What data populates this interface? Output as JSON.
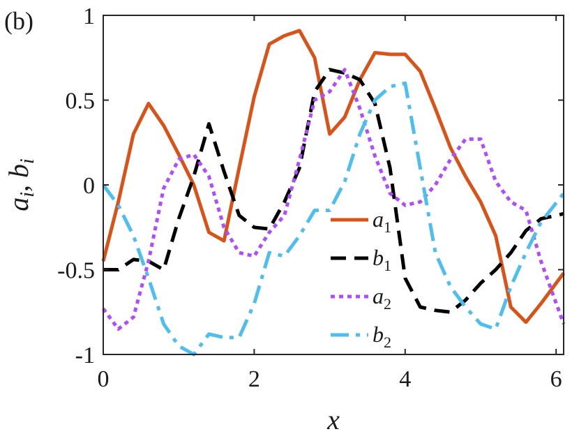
{
  "panel_label": "(b)",
  "chart_data": {
    "type": "line",
    "xlabel": "x",
    "ylabel": "a_i, b_i",
    "xlim": [
      0,
      6.1
    ],
    "ylim": [
      -1,
      1
    ],
    "xticks": [
      0,
      2,
      4,
      6
    ],
    "xtick_labels": [
      "0",
      "2",
      "4",
      "6"
    ],
    "yticks": [
      1,
      0.5,
      0,
      -0.5,
      -1
    ],
    "ytick_labels": [
      "1",
      "0.5",
      "0",
      "-0.5",
      "-1"
    ],
    "grid": false,
    "legend_position": "center-right",
    "series": [
      {
        "name": "a_1",
        "symbol": "a",
        "subscript": "1",
        "color": "#D95319",
        "dash": "solid",
        "x": [
          0,
          0.2,
          0.4,
          0.6,
          0.8,
          1.0,
          1.2,
          1.4,
          1.6,
          1.8,
          2.0,
          2.2,
          2.4,
          2.6,
          2.8,
          3.0,
          3.2,
          3.4,
          3.6,
          3.8,
          4.0,
          4.2,
          4.4,
          4.6,
          4.8,
          5.0,
          5.2,
          5.4,
          5.6,
          5.8,
          6.1
        ],
        "y": [
          -0.45,
          -0.1,
          0.3,
          0.48,
          0.35,
          0.18,
          0.0,
          -0.28,
          -0.33,
          0.1,
          0.52,
          0.83,
          0.88,
          0.91,
          0.75,
          0.3,
          0.4,
          0.62,
          0.78,
          0.77,
          0.77,
          0.67,
          0.45,
          0.22,
          0.05,
          -0.1,
          -0.3,
          -0.72,
          -0.81,
          -0.7,
          -0.52
        ]
      },
      {
        "name": "b_1",
        "symbol": "b",
        "subscript": "1",
        "color": "#000000",
        "dash": "long-dash",
        "x": [
          0,
          0.2,
          0.4,
          0.6,
          0.8,
          1.0,
          1.2,
          1.4,
          1.6,
          1.8,
          2.0,
          2.2,
          2.4,
          2.6,
          2.8,
          3.0,
          3.2,
          3.4,
          3.6,
          3.8,
          4.0,
          4.2,
          4.4,
          4.6,
          4.8,
          5.0,
          5.2,
          5.4,
          5.6,
          5.8,
          6.1
        ],
        "y": [
          -0.5,
          -0.5,
          -0.44,
          -0.45,
          -0.5,
          -0.2,
          0.05,
          0.36,
          0.08,
          -0.18,
          -0.25,
          -0.26,
          -0.1,
          0.1,
          0.55,
          0.68,
          0.66,
          0.62,
          0.48,
          0.1,
          -0.55,
          -0.72,
          -0.74,
          -0.75,
          -0.68,
          -0.58,
          -0.5,
          -0.4,
          -0.27,
          -0.2,
          -0.17
        ]
      },
      {
        "name": "a_2",
        "symbol": "a",
        "subscript": "2",
        "color": "#B04BFF",
        "dash": "dotted",
        "x": [
          0,
          0.2,
          0.4,
          0.6,
          0.8,
          1.0,
          1.2,
          1.4,
          1.6,
          1.8,
          2.0,
          2.2,
          2.4,
          2.6,
          2.8,
          3.0,
          3.2,
          3.4,
          3.6,
          3.8,
          4.0,
          4.2,
          4.4,
          4.6,
          4.8,
          5.0,
          5.2,
          5.4,
          5.6,
          5.8,
          6.1
        ],
        "y": [
          -0.73,
          -0.85,
          -0.78,
          -0.45,
          -0.02,
          0.15,
          0.18,
          0.05,
          -0.25,
          -0.4,
          -0.42,
          -0.28,
          -0.18,
          0.15,
          0.5,
          0.55,
          0.68,
          0.45,
          0.17,
          -0.05,
          -0.12,
          -0.1,
          0.0,
          0.15,
          0.27,
          0.27,
          0.02,
          -0.1,
          -0.15,
          -0.45,
          -0.82
        ]
      },
      {
        "name": "b_2",
        "symbol": "b",
        "subscript": "2",
        "color": "#4DBEEE",
        "dash": "dash-dot",
        "x": [
          0,
          0.2,
          0.4,
          0.6,
          0.8,
          1.0,
          1.2,
          1.4,
          1.6,
          1.8,
          2.0,
          2.2,
          2.4,
          2.6,
          2.8,
          3.0,
          3.2,
          3.4,
          3.6,
          3.8,
          4.0,
          4.2,
          4.4,
          4.6,
          4.8,
          5.0,
          5.2,
          5.4,
          5.6,
          5.8,
          6.1
        ],
        "y": [
          0.0,
          -0.12,
          -0.3,
          -0.55,
          -0.82,
          -0.95,
          -1.0,
          -0.88,
          -0.9,
          -0.9,
          -0.7,
          -0.4,
          -0.42,
          -0.3,
          -0.15,
          -0.15,
          0.02,
          0.3,
          0.5,
          0.58,
          0.6,
          0.1,
          -0.4,
          -0.6,
          -0.72,
          -0.82,
          -0.85,
          -0.6,
          -0.4,
          -0.22,
          -0.05
        ]
      }
    ]
  }
}
